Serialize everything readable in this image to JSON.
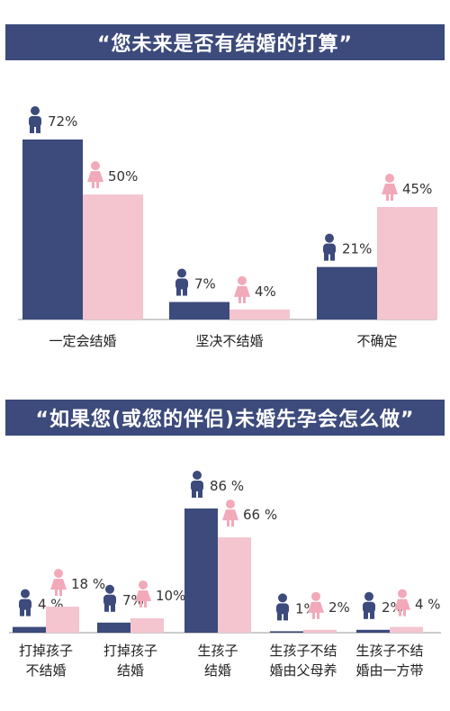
{
  "colors": {
    "banner": "#3c4a7c",
    "male": "#3c4a7c",
    "female": "#f4c4cf",
    "male_icon": "#3c4a7c",
    "female_icon": "#f2a9b9",
    "axis": "#999999"
  },
  "icons": {
    "male": "male-figure-icon",
    "female": "female-figure-icon"
  },
  "chart_data": [
    {
      "type": "bar",
      "title": "“您未来是否有结婚的打算”",
      "categories": [
        "一定会结婚",
        "坚决不结婚",
        "不确定"
      ],
      "series": [
        {
          "values": [
            72,
            7,
            21
          ],
          "labels": [
            "72%",
            "7%",
            "21%"
          ]
        },
        {
          "values": [
            50,
            4,
            45
          ],
          "labels": [
            "50%",
            "4%",
            "45%"
          ]
        }
      ],
      "ylim": [
        0,
        72
      ]
    },
    {
      "type": "bar",
      "title": "“如果您(或您的伴侣)未婚先孕会怎么做”",
      "categories": [
        [
          "打掉孩子",
          "不结婚"
        ],
        [
          "打掉孩子",
          "结婚"
        ],
        [
          "生孩子",
          "结婚"
        ],
        [
          "生孩子不结",
          "婚由父母养"
        ],
        [
          "生孩子不结",
          "婚由一方带"
        ]
      ],
      "series": [
        {
          "values": [
            4,
            7,
            86,
            1,
            2
          ],
          "labels": [
            "4 %",
            "7%",
            "86 %",
            "1%",
            "2%"
          ]
        },
        {
          "values": [
            18,
            10,
            66,
            2,
            4
          ],
          "labels": [
            "18 %",
            "10%",
            "66 %",
            "2%",
            "4 %"
          ]
        }
      ],
      "ylim": [
        0,
        86
      ]
    }
  ]
}
